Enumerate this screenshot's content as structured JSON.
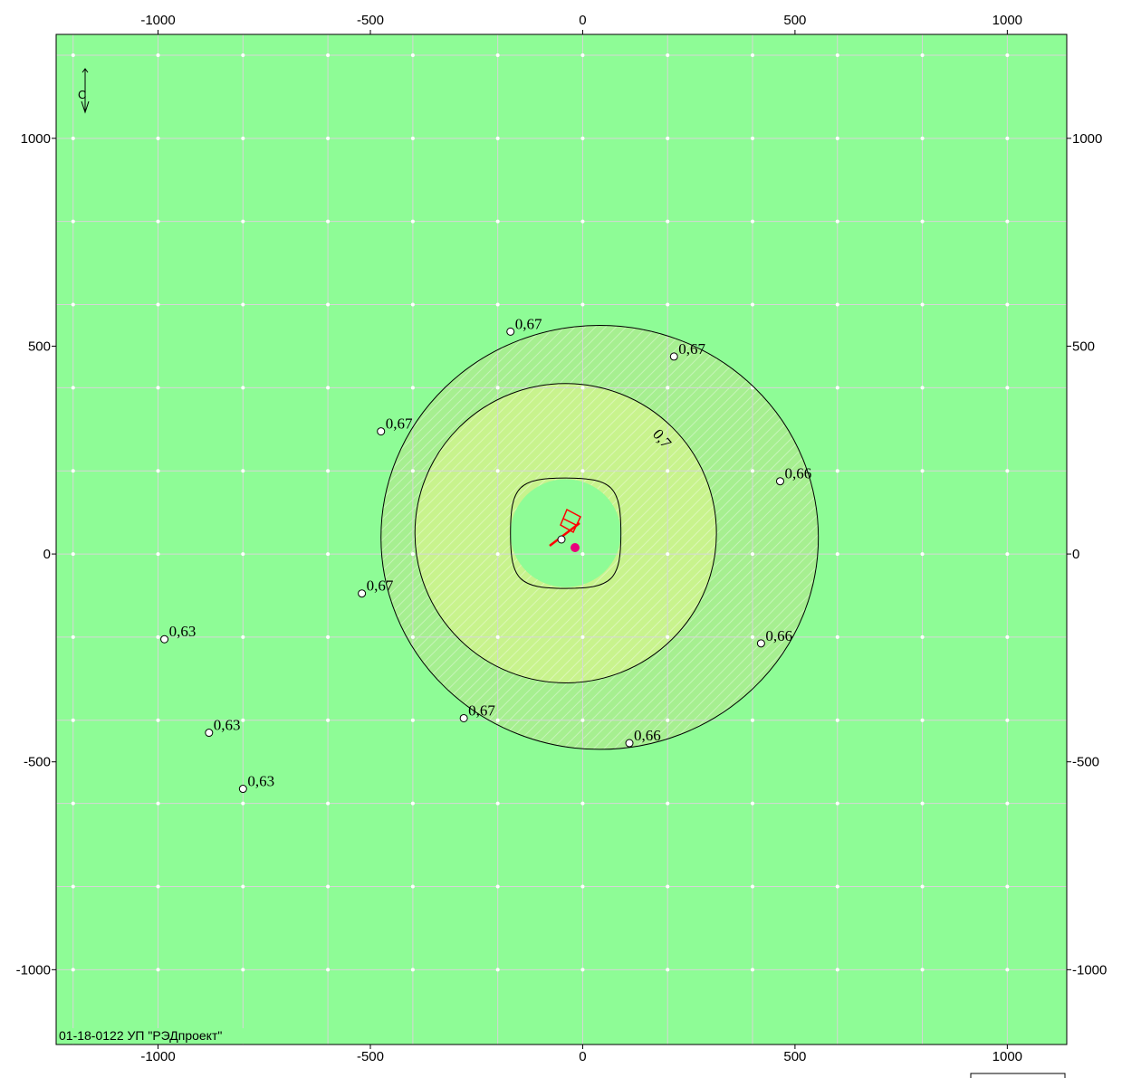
{
  "map": {
    "x_axis": {
      "range": [
        -1240,
        1140
      ],
      "ticks": [
        -1000,
        -500,
        0,
        500,
        1000
      ],
      "tick_labels": [
        "-1000",
        "-500",
        "0",
        "500",
        "1000"
      ]
    },
    "y_axis": {
      "range": [
        -1180,
        1250
      ],
      "ticks": [
        1000,
        500,
        0,
        -500,
        -1000
      ],
      "tick_labels": [
        "1000",
        "500",
        "0",
        "-500",
        "-1000"
      ]
    },
    "grid_step": 200,
    "colors": {
      "background": "#8efc96",
      "zone_outer": "#a6ef90",
      "zone_inner": "#c8f38d",
      "grid": "#d6d6d6",
      "contour": "#000000",
      "source": "#ff0000",
      "source_marker": "#e8007c"
    },
    "north_arrow_label": "С",
    "contours": [
      {
        "value": "0,67",
        "cx": 40,
        "cy": 40,
        "rx": 515,
        "ry": 510
      },
      {
        "value": "0,7",
        "cx": -40,
        "cy": 50,
        "rx": 355,
        "ry": 360
      },
      {
        "value": "",
        "cx": -40,
        "cy": 50,
        "rx": 130,
        "ry": 130
      }
    ],
    "contour_label_inner": "0,7",
    "points": [
      {
        "x": -170,
        "y": 535,
        "label": "0,67"
      },
      {
        "x": 215,
        "y": 475,
        "label": "0,67"
      },
      {
        "x": -475,
        "y": 295,
        "label": "0,67"
      },
      {
        "x": 465,
        "y": 175,
        "label": "0,66"
      },
      {
        "x": -520,
        "y": -95,
        "label": "0,67"
      },
      {
        "x": 420,
        "y": -215,
        "label": "0,66"
      },
      {
        "x": -985,
        "y": -205,
        "label": "0,63"
      },
      {
        "x": -880,
        "y": -430,
        "label": "0,63"
      },
      {
        "x": -280,
        "y": -395,
        "label": "0,67"
      },
      {
        "x": 110,
        "y": -455,
        "label": "0,66"
      },
      {
        "x": -800,
        "y": -565,
        "label": "0,63"
      }
    ],
    "source_label": "",
    "footer": "01-18-0122 УП \"РЭДпроект\""
  }
}
